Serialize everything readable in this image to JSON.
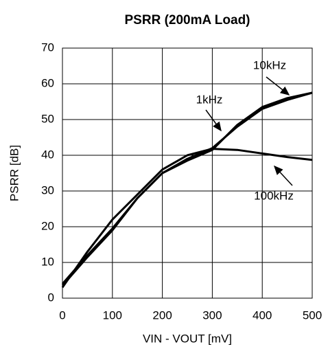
{
  "chart_data": {
    "type": "line",
    "title": "PSRR (200mA Load)",
    "x_label": "VIN - VOUT [mV]",
    "y_label": "PSRR [dB]",
    "x": [
      0,
      50,
      100,
      150,
      200,
      250,
      300,
      350,
      400,
      450,
      500
    ],
    "series": [
      {
        "name": "1kHz",
        "color": "#000000",
        "values": [
          4,
          12,
          19.5,
          28,
          35,
          39,
          42,
          48,
          53,
          55.5,
          57.5
        ]
      },
      {
        "name": "10kHz",
        "color": "#000000",
        "values": [
          3.5,
          11.5,
          19,
          28,
          35,
          38.5,
          41.5,
          48.5,
          53.5,
          56,
          57.5
        ]
      },
      {
        "name": "100kHz",
        "color": "#000000",
        "values": [
          3,
          13,
          22,
          29,
          36,
          40,
          41.8,
          41.5,
          40.5,
          39.5,
          38.7
        ]
      }
    ],
    "xlim": [
      0,
      500
    ],
    "xticks": [
      0,
      100,
      200,
      300,
      400,
      500
    ],
    "ylim": [
      0,
      70
    ],
    "yticks": [
      0,
      10,
      20,
      30,
      40,
      50,
      60,
      70
    ],
    "grid": true
  }
}
